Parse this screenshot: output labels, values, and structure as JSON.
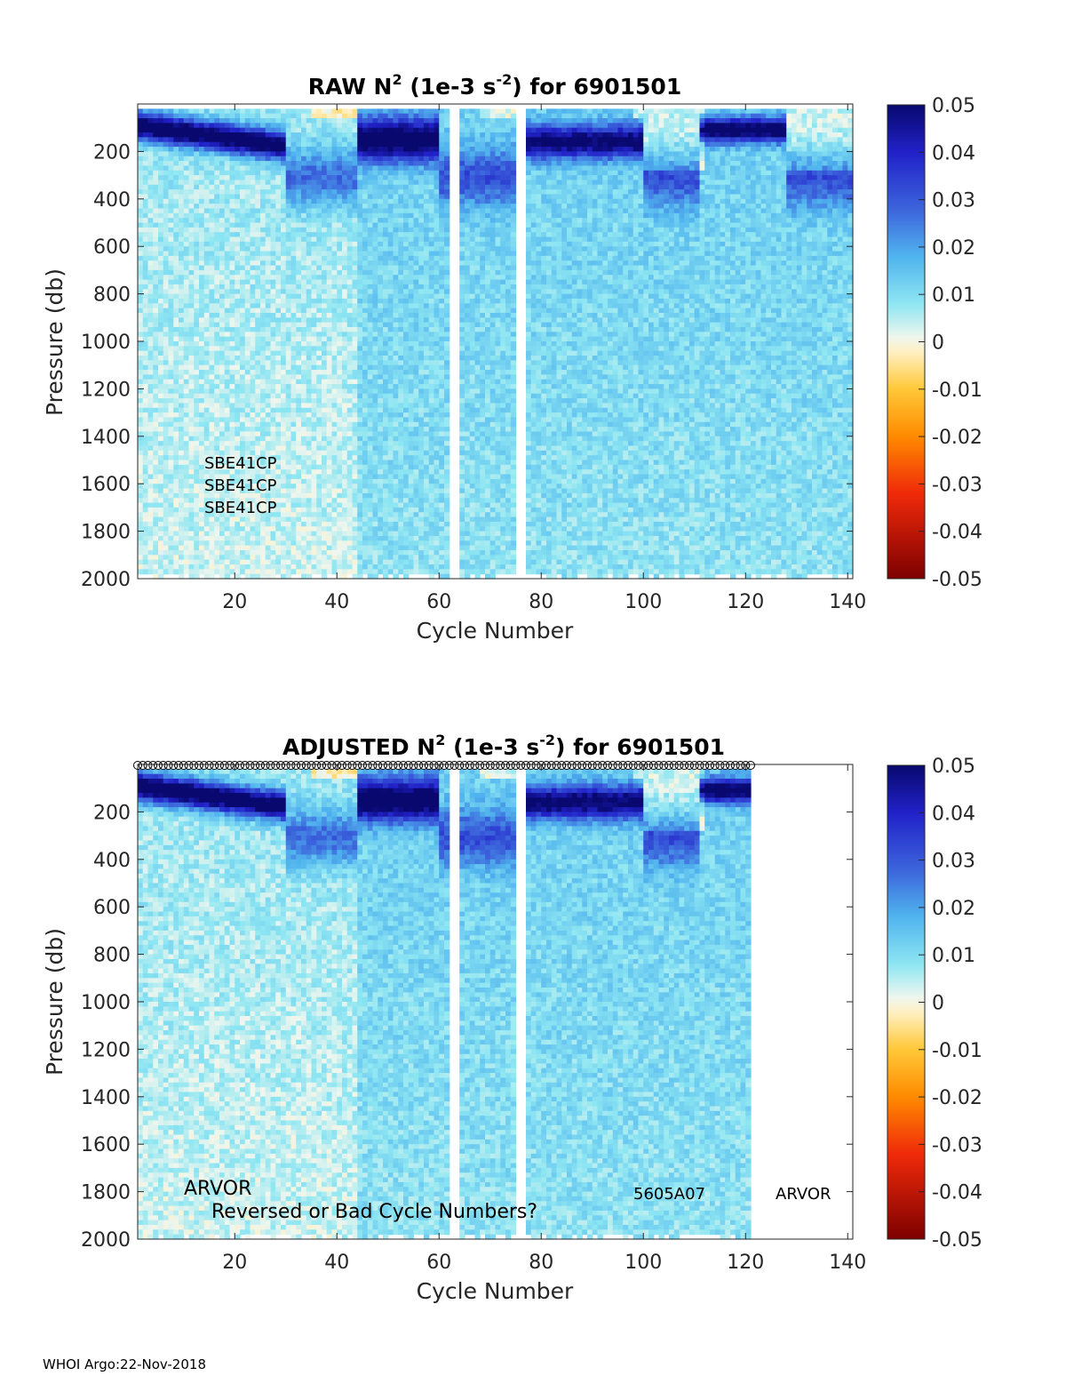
{
  "chart_data": [
    {
      "type": "heatmap",
      "title_main": "RAW N",
      "title_sup1": "2",
      "title_mid": " (1e-3 s",
      "title_sup2": "-2",
      "title_end": ") for 6901501",
      "xlabel": "Cycle Number",
      "ylabel": "Pressure (db)",
      "xlim": [
        1,
        141
      ],
      "ylim": [
        2000,
        0
      ],
      "x_ticks": [
        "20",
        "40",
        "60",
        "80",
        "100",
        "120",
        "140"
      ],
      "y_ticks": [
        "200",
        "400",
        "600",
        "800",
        "1000",
        "1200",
        "1400",
        "1600",
        "1800",
        "2000"
      ],
      "color_range": [
        -0.05,
        0.05
      ],
      "colorbar_ticks": [
        "0.05",
        "0.04",
        "0.03",
        "0.02",
        "0.01",
        "0",
        "-0.01",
        "-0.02",
        "-0.03",
        "-0.04",
        "-0.05"
      ],
      "data_x_range": [
        1,
        141
      ],
      "annotations": [
        "SBE41CP",
        "SBE41CP",
        "SBE41CP"
      ],
      "missing_profiles": [
        62,
        63,
        75,
        76
      ],
      "cycle_markers": false
    },
    {
      "type": "heatmap",
      "title_main": "ADJUSTED N",
      "title_sup1": "2",
      "title_mid": " (1e-3 s",
      "title_sup2": "-2",
      "title_end": ") for 6901501",
      "xlabel": "Cycle Number",
      "ylabel": "Pressure (db)",
      "xlim": [
        1,
        141
      ],
      "ylim": [
        2000,
        0
      ],
      "x_ticks": [
        "20",
        "40",
        "60",
        "80",
        "100",
        "120",
        "140"
      ],
      "y_ticks": [
        "200",
        "400",
        "600",
        "800",
        "1000",
        "1200",
        "1400",
        "1600",
        "1800",
        "2000"
      ],
      "color_range": [
        -0.05,
        0.05
      ],
      "colorbar_ticks": [
        "0.05",
        "0.04",
        "0.03",
        "0.02",
        "0.01",
        "0",
        "-0.01",
        "-0.02",
        "-0.03",
        "-0.04",
        "-0.05"
      ],
      "data_x_range": [
        1,
        121
      ],
      "annotations": [
        "ARVOR",
        "Reversed or Bad Cycle Numbers?",
        "5605A07",
        "ARVOR"
      ],
      "missing_profiles": [
        62,
        63,
        75,
        76
      ],
      "cycle_markers": true
    }
  ],
  "footer": "WHOI Argo:22-Nov-2018"
}
